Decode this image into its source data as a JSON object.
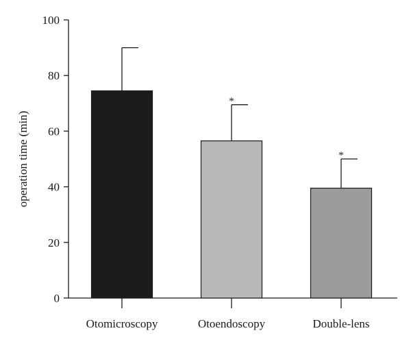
{
  "chart_data": {
    "type": "bar",
    "title": "",
    "xlabel": "",
    "ylabel": "operation time (min)",
    "categories": [
      "Otomicroscopy",
      "Otoendoscopy",
      "Double-lens"
    ],
    "values": [
      74.5,
      56.5,
      39.5
    ],
    "error_upper": [
      90,
      69.5,
      50
    ],
    "significance": [
      "",
      "*",
      "*"
    ],
    "colors": [
      "#1c1c1c",
      "#b9b9b9",
      "#9b9b9b"
    ],
    "ylim": [
      0,
      100
    ],
    "yticks": [
      0,
      20,
      40,
      60,
      80,
      100
    ],
    "grid": false,
    "legend": "none"
  }
}
